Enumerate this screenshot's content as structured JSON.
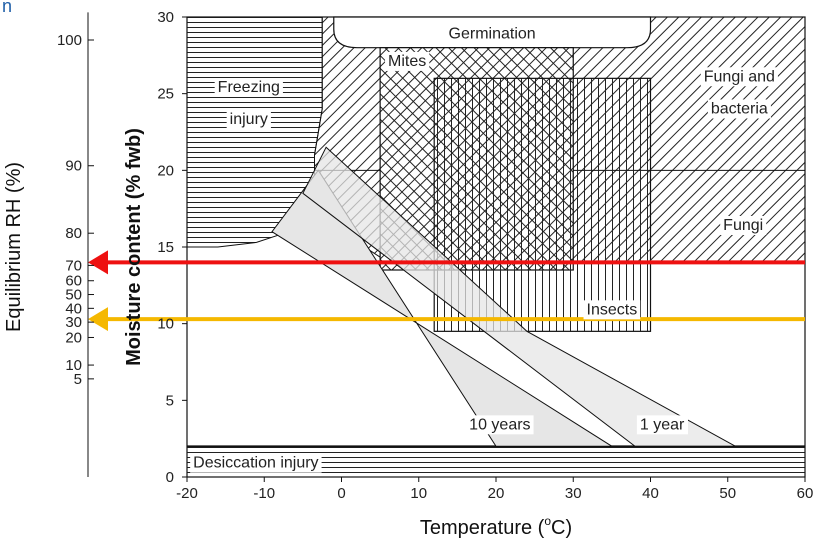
{
  "chart_data": {
    "type": "area",
    "xlabel": "Temperature (°C)",
    "xlabel_main": "Temperature (",
    "xlabel_unit": "C)",
    "xlabel_degree": "o",
    "ylabel": "Moisture content (% fwb)",
    "ylabel_left": "Equilibrium RH (%)",
    "xlim": [
      -20,
      60
    ],
    "ylim": [
      0,
      30
    ],
    "x_ticks": [
      "-20",
      "-10",
      "0",
      "10",
      "20",
      "30",
      "40",
      "50",
      "60"
    ],
    "y_ticks": [
      "0",
      "5",
      "10",
      "15",
      "20",
      "25",
      "30"
    ],
    "rh_ticks": [
      {
        "label": "100",
        "mc": 28.5
      },
      {
        "label": "90",
        "mc": 20.3
      },
      {
        "label": "80",
        "mc": 15.9
      },
      {
        "label": "70",
        "mc": 13.8
      },
      {
        "label": "60",
        "mc": 12.8
      },
      {
        "label": "50",
        "mc": 11.9
      },
      {
        "label": "40",
        "mc": 11.0
      },
      {
        "label": "30",
        "mc": 10.1
      },
      {
        "label": "20",
        "mc": 9.1
      },
      {
        "label": "10",
        "mc": 7.3
      },
      {
        "label": "5",
        "mc": 6.4
      }
    ],
    "regions": [
      {
        "name": "Germination",
        "label": "Germination",
        "x": [
          -1,
          40
        ],
        "y": [
          28,
          30
        ]
      },
      {
        "name": "Freezing injury",
        "label_lines": [
          "Freezing",
          "injury"
        ],
        "x": [
          -20,
          -2
        ],
        "y": [
          15,
          30
        ]
      },
      {
        "name": "Fungi and bacteria",
        "label_lines": [
          "Fungi and",
          "bacteria"
        ],
        "y_min": 20
      },
      {
        "name": "Fungi",
        "label": "Fungi",
        "y": [
          13.5,
          20
        ]
      },
      {
        "name": "Mites",
        "label": "Mites",
        "x": [
          5,
          30
        ],
        "y": [
          13.5,
          28
        ]
      },
      {
        "name": "Insects",
        "label": "Insects",
        "x": [
          12,
          40
        ],
        "y": [
          9.5,
          26
        ]
      },
      {
        "name": "Desiccation injury",
        "label": "Desiccation injury",
        "x": [
          -20,
          60
        ],
        "y": [
          0,
          2
        ]
      }
    ],
    "storage_bands": [
      {
        "name": "10 years",
        "label": "10 years",
        "upper": [
          [
            -3,
            20
          ],
          [
            20,
            2
          ]
        ],
        "lower": [
          [
            -9,
            16
          ],
          [
            35,
            2
          ]
        ]
      },
      {
        "name": "1 year",
        "label": "1 year",
        "upper": [
          [
            -2,
            21.5
          ],
          [
            24,
            9.5
          ],
          [
            51,
            2
          ]
        ],
        "lower": [
          [
            -5,
            18.5
          ],
          [
            38,
            2
          ]
        ]
      }
    ],
    "reference_lines": [
      {
        "name": "red-line",
        "y": 14,
        "color": "#ee1111"
      },
      {
        "name": "orange-line",
        "y": 10.3,
        "color": "#f5b800"
      }
    ],
    "grid": false
  },
  "page": {
    "corner_glyph": "n"
  }
}
